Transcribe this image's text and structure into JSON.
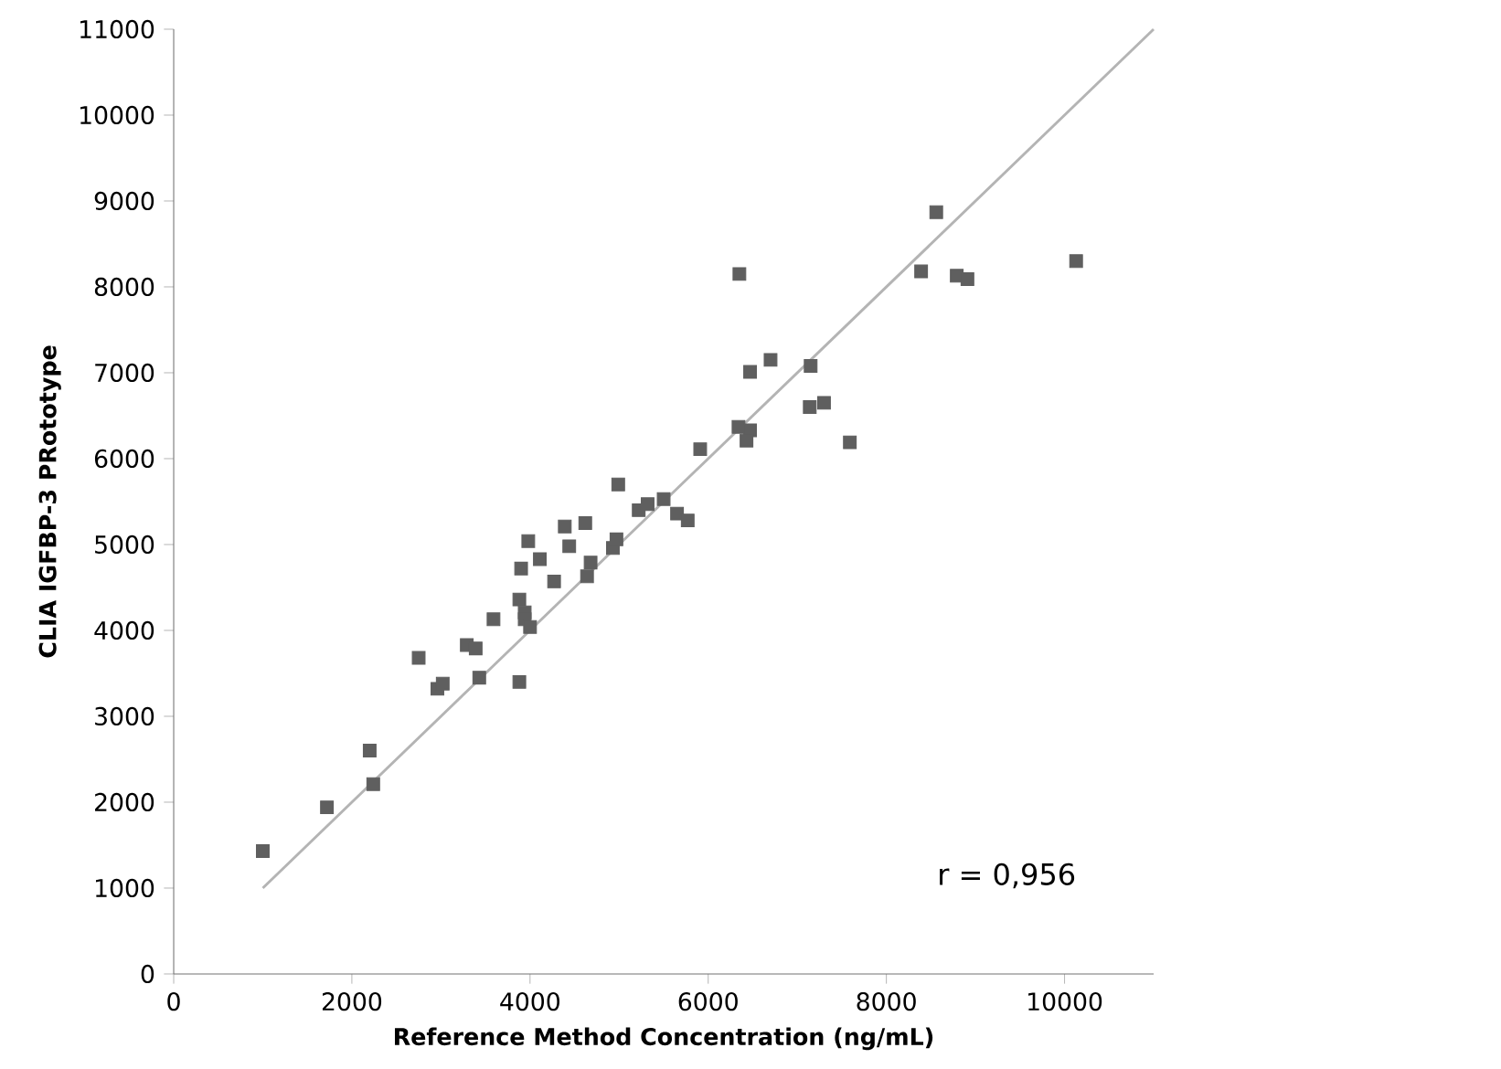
{
  "chart_data": {
    "type": "scatter",
    "xlabel": "Reference Method Concentration (ng/mL)",
    "ylabel": "CLIA IGFBP-3 PRototype",
    "xlim": [
      0,
      11000
    ],
    "xticks": [
      0,
      2000,
      4000,
      6000,
      8000,
      10000
    ],
    "ylim": [
      0,
      11000
    ],
    "yticks": [
      0,
      1000,
      2000,
      3000,
      4000,
      5000,
      6000,
      7000,
      8000,
      9000,
      10000,
      11000
    ],
    "grid": false,
    "annotations": [
      "r = 0,956"
    ],
    "series": [
      {
        "marker": "square",
        "color": "#5f5f5f",
        "x": [
          1000,
          1720,
          2200,
          2240,
          2750,
          2960,
          3020,
          3430,
          3290,
          3390,
          3590,
          3880,
          3880,
          3900,
          3940,
          3940,
          4000,
          3980,
          4110,
          4270,
          4390,
          4440,
          4620,
          4640,
          4680,
          4930,
          4970,
          4990,
          5220,
          5320,
          5500,
          5650,
          5770,
          5910,
          6350,
          6470,
          6700,
          7150,
          6340,
          6470,
          6430,
          7140,
          7300,
          7590,
          8390,
          8790,
          8910,
          10130,
          8560
        ],
        "values": [
          1430,
          1940,
          2600,
          2210,
          3680,
          3320,
          3380,
          3450,
          3830,
          3790,
          4130,
          3400,
          4360,
          4720,
          4210,
          4130,
          4040,
          5040,
          4830,
          4570,
          5210,
          4980,
          5250,
          4630,
          4790,
          4960,
          5060,
          5700,
          5400,
          5470,
          5530,
          5360,
          5280,
          6110,
          8150,
          7010,
          7150,
          7080,
          6370,
          6330,
          6210,
          6600,
          6650,
          6190,
          8180,
          8130,
          8090,
          8300,
          8870
        ]
      },
      {
        "type": "line",
        "marker": "none",
        "color": "#b4b4b4",
        "x": [
          1000,
          11000
        ],
        "values": [
          1000,
          11000
        ]
      }
    ]
  }
}
